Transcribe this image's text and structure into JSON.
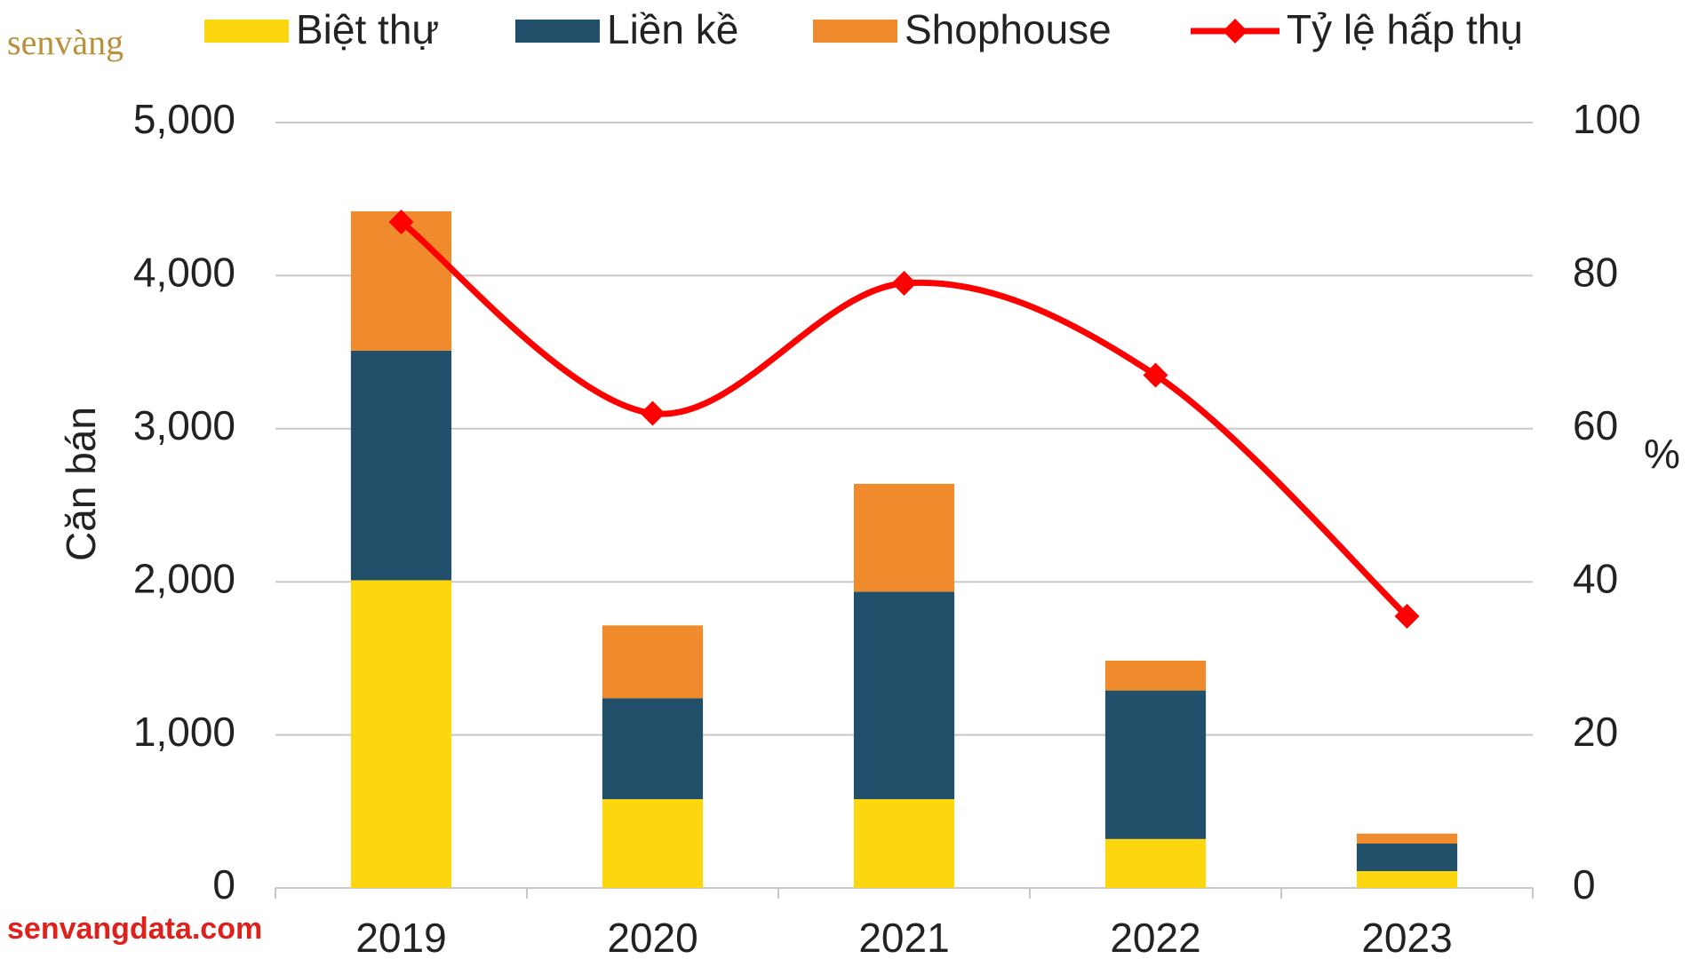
{
  "chart_data": {
    "type": "bar",
    "stacked": true,
    "categories": [
      "2019",
      "2020",
      "2021",
      "2022",
      "2023"
    ],
    "series": [
      {
        "name": "Biệt thự",
        "color": "#fcd710",
        "values": [
          2010,
          580,
          580,
          320,
          110
        ]
      },
      {
        "name": "Liền kề",
        "color": "#22506a",
        "values": [
          1500,
          660,
          1355,
          970,
          180
        ]
      },
      {
        "name": "Shophouse",
        "color": "#ef8b2c",
        "values": [
          910,
          475,
          705,
          195,
          65
        ]
      },
      {
        "name": "Tỷ lệ hấp thụ",
        "type": "line",
        "axis": "y2",
        "color": "#ff0000",
        "values": [
          87,
          62,
          79,
          67,
          35.5
        ]
      }
    ],
    "y_label": "Căn bán",
    "y2_label": "%",
    "ylim": [
      0,
      5000
    ],
    "yticks": [
      0,
      {
        "value": 1000,
        "label": "1,000"
      },
      {
        "value": 2000,
        "label": "2,000"
      },
      {
        "value": 3000,
        "label": "3,000"
      },
      {
        "value": 4000,
        "label": "4,000"
      },
      {
        "value": 5000,
        "label": "5,000"
      }
    ],
    "y2lim": [
      0,
      100
    ],
    "y2ticks": [
      0,
      20,
      40,
      60,
      80,
      100
    ],
    "grid": true,
    "legend": "top",
    "watermarks": [
      "senvàng",
      "senvangdata.com"
    ]
  }
}
